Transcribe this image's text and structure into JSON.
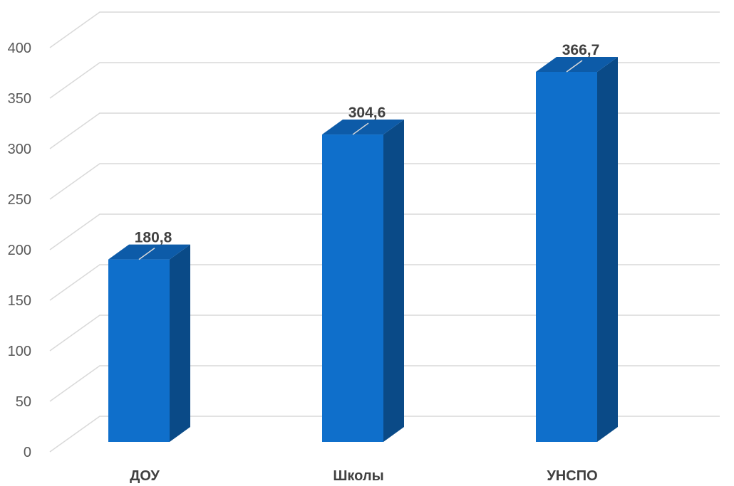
{
  "chart_data": {
    "type": "bar",
    "style": "3d-column",
    "title": "",
    "xlabel": "",
    "ylabel": "",
    "categories": [
      "ДОУ",
      "Школы",
      "УНСПО"
    ],
    "values": [
      180.8,
      304.6,
      366.7
    ],
    "value_labels": [
      "180,8",
      "304,6",
      "366,7"
    ],
    "ylim": [
      0,
      400
    ],
    "yticks": [
      0,
      50,
      100,
      150,
      200,
      250,
      300,
      350,
      400
    ],
    "grid": true,
    "legend": "none",
    "colors": {
      "front": "#0f6fcb",
      "side": "#0a4a87",
      "top": "#0d5ba8",
      "grid": "#d9d9d9"
    }
  }
}
